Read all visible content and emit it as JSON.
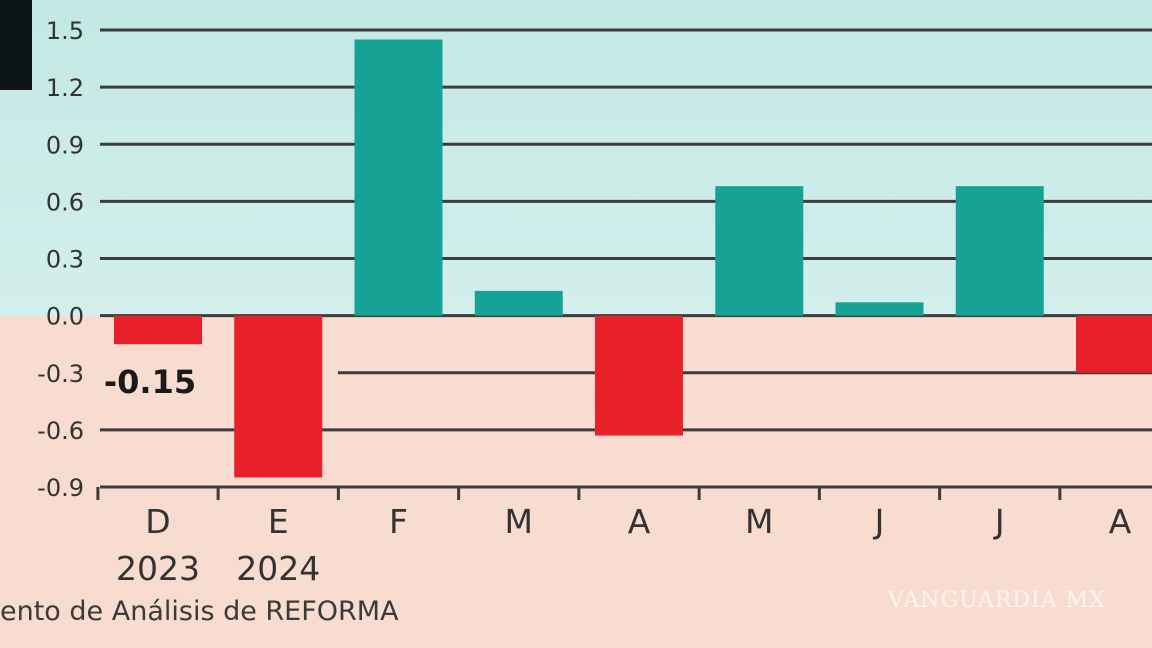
{
  "chart_data": {
    "type": "bar",
    "categories": [
      {
        "month": "D",
        "year": "2023"
      },
      {
        "month": "E",
        "year": "2024"
      },
      {
        "month": "F",
        "year": ""
      },
      {
        "month": "M",
        "year": ""
      },
      {
        "month": "A",
        "year": ""
      },
      {
        "month": "M",
        "year": ""
      },
      {
        "month": "J",
        "year": ""
      },
      {
        "month": "J",
        "year": ""
      },
      {
        "month": "A",
        "year": ""
      }
    ],
    "values": [
      -0.15,
      -0.85,
      1.45,
      0.13,
      -0.63,
      0.68,
      0.07,
      0.68,
      -0.3
    ],
    "yticks": [
      "1.5",
      "1.2",
      "0.9",
      "0.6",
      "0.3",
      "0.0",
      "-0.3",
      "-0.6",
      "-0.9"
    ],
    "ylim": [
      -0.9,
      1.5
    ],
    "annotations": [
      {
        "category_index": 0,
        "text": "-0.15"
      }
    ],
    "colors": {
      "positive": "#16a396",
      "negative": "#e8202a",
      "positive_bg": "#c6e9e6",
      "negative_bg": "#f8dccf",
      "grid": "#3c3c3c"
    },
    "grid": true
  },
  "source_text": "ento de Análisis de REFORMA",
  "watermark_text": "VANGUARDIA MX"
}
